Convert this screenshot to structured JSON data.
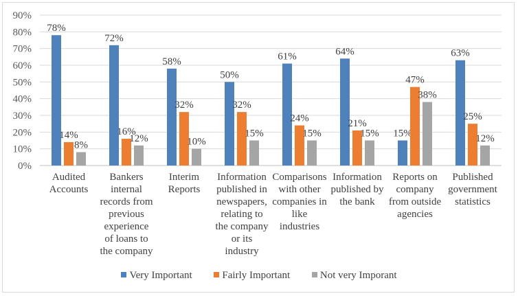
{
  "chart_data": {
    "type": "bar",
    "title": "",
    "xlabel": "",
    "ylabel": "",
    "ylim": [
      0,
      0.9
    ],
    "yticks": [
      "0%",
      "10%",
      "20%",
      "30%",
      "40%",
      "50%",
      "60%",
      "70%",
      "80%",
      "90%"
    ],
    "grid": true,
    "legend_position": "bottom",
    "categories": [
      [
        "Audited",
        "Accounts"
      ],
      [
        "Bankers",
        "internal",
        "records from",
        "previous",
        "experience",
        "of loans to",
        "the company"
      ],
      [
        "Interim",
        "Reports"
      ],
      [
        "Information",
        "published in",
        "newspapers,",
        "relating to",
        "the company",
        "or its",
        "industry"
      ],
      [
        "Comparisons",
        "with other",
        "companies in",
        "like",
        "industries"
      ],
      [
        "Information",
        "published by",
        "the bank"
      ],
      [
        "Reports on",
        "company",
        "from outside",
        "agencies"
      ],
      [
        "Published",
        "government",
        "statistics"
      ]
    ],
    "series": [
      {
        "name": "Very Important",
        "color": "#4f81bd",
        "values": [
          0.78,
          0.72,
          0.58,
          0.5,
          0.61,
          0.64,
          0.15,
          0.63
        ],
        "labels": [
          "78%",
          "72%",
          "58%",
          "50%",
          "61%",
          "64%",
          "15%",
          "63%"
        ]
      },
      {
        "name": "Fairly Important",
        "color": "#ed7d31",
        "values": [
          0.14,
          0.16,
          0.32,
          0.32,
          0.24,
          0.21,
          0.47,
          0.25
        ],
        "labels": [
          "14%",
          "16%",
          "32%",
          "32%",
          "24%",
          "21%",
          "47%",
          "25%"
        ]
      },
      {
        "name": "Not very Imporant",
        "color": "#a5a5a5",
        "values": [
          0.08,
          0.12,
          0.1,
          0.15,
          0.15,
          0.15,
          0.38,
          0.12
        ],
        "labels": [
          "8%",
          "12%",
          "10%",
          "15%",
          "15%",
          "15%",
          "38%",
          "12%"
        ]
      }
    ]
  }
}
